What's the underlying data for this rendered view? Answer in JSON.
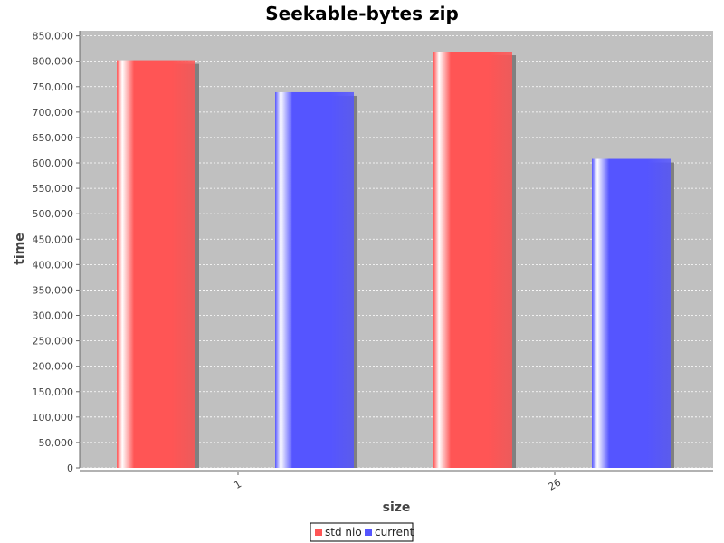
{
  "chart_data": {
    "type": "bar",
    "title": "Seekable-bytes zip",
    "xlabel": "size",
    "ylabel": "time",
    "categories": [
      "1",
      "26"
    ],
    "series": [
      {
        "name": "std nio",
        "values": [
          802000,
          819000
        ],
        "color": "#ff5555"
      },
      {
        "name": "current",
        "values": [
          739000,
          608000
        ],
        "color": "#5555ff"
      }
    ],
    "ylim": [
      0,
      860000
    ],
    "yticks": [
      0,
      50000,
      100000,
      150000,
      200000,
      250000,
      300000,
      350000,
      400000,
      450000,
      500000,
      550000,
      600000,
      650000,
      700000,
      750000,
      800000,
      850000
    ],
    "ytick_labels": [
      "0",
      "50,000",
      "100,000",
      "150,000",
      "200,000",
      "250,000",
      "300,000",
      "350,000",
      "400,000",
      "450,000",
      "500,000",
      "550,000",
      "600,000",
      "650,000",
      "700,000",
      "750,000",
      "800,000",
      "850,000"
    ],
    "grid": true,
    "legend_position": "bottom-center",
    "plot_background": "#c0c0c0"
  }
}
